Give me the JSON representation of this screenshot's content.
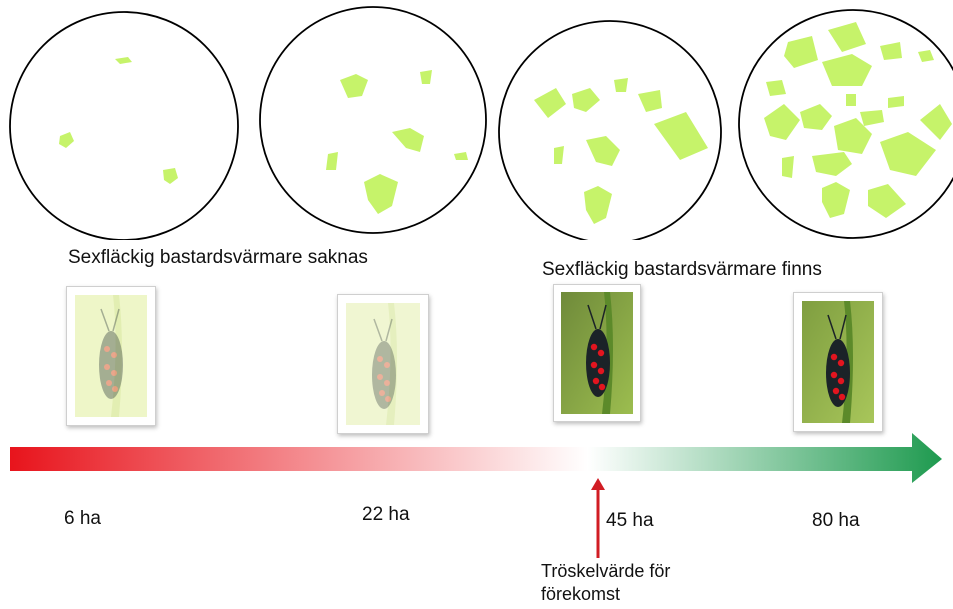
{
  "status": {
    "absent": "Sexfläckig bastardsvärmare saknas",
    "present": "Sexfläckig bastardsvärmare finns"
  },
  "scale": {
    "ticks": [
      "6 ha",
      "22 ha",
      "45 ha",
      "80 ha"
    ],
    "gradient_colors": [
      "#e8141c",
      "#ffffff",
      "#1e9a4f"
    ]
  },
  "threshold": {
    "line1": "Tröskelvärde för",
    "line2": "förekomst",
    "color": "#d11d24"
  },
  "colors": {
    "habitat_patch": "#c6f36a",
    "circle_outline": "#000000"
  },
  "photos": [
    {
      "name": "moth-photo-faded",
      "faded": true
    },
    {
      "name": "moth-photo-faded",
      "faded": true
    },
    {
      "name": "moth-photo",
      "faded": false
    },
    {
      "name": "moth-photo",
      "faded": false
    }
  ]
}
